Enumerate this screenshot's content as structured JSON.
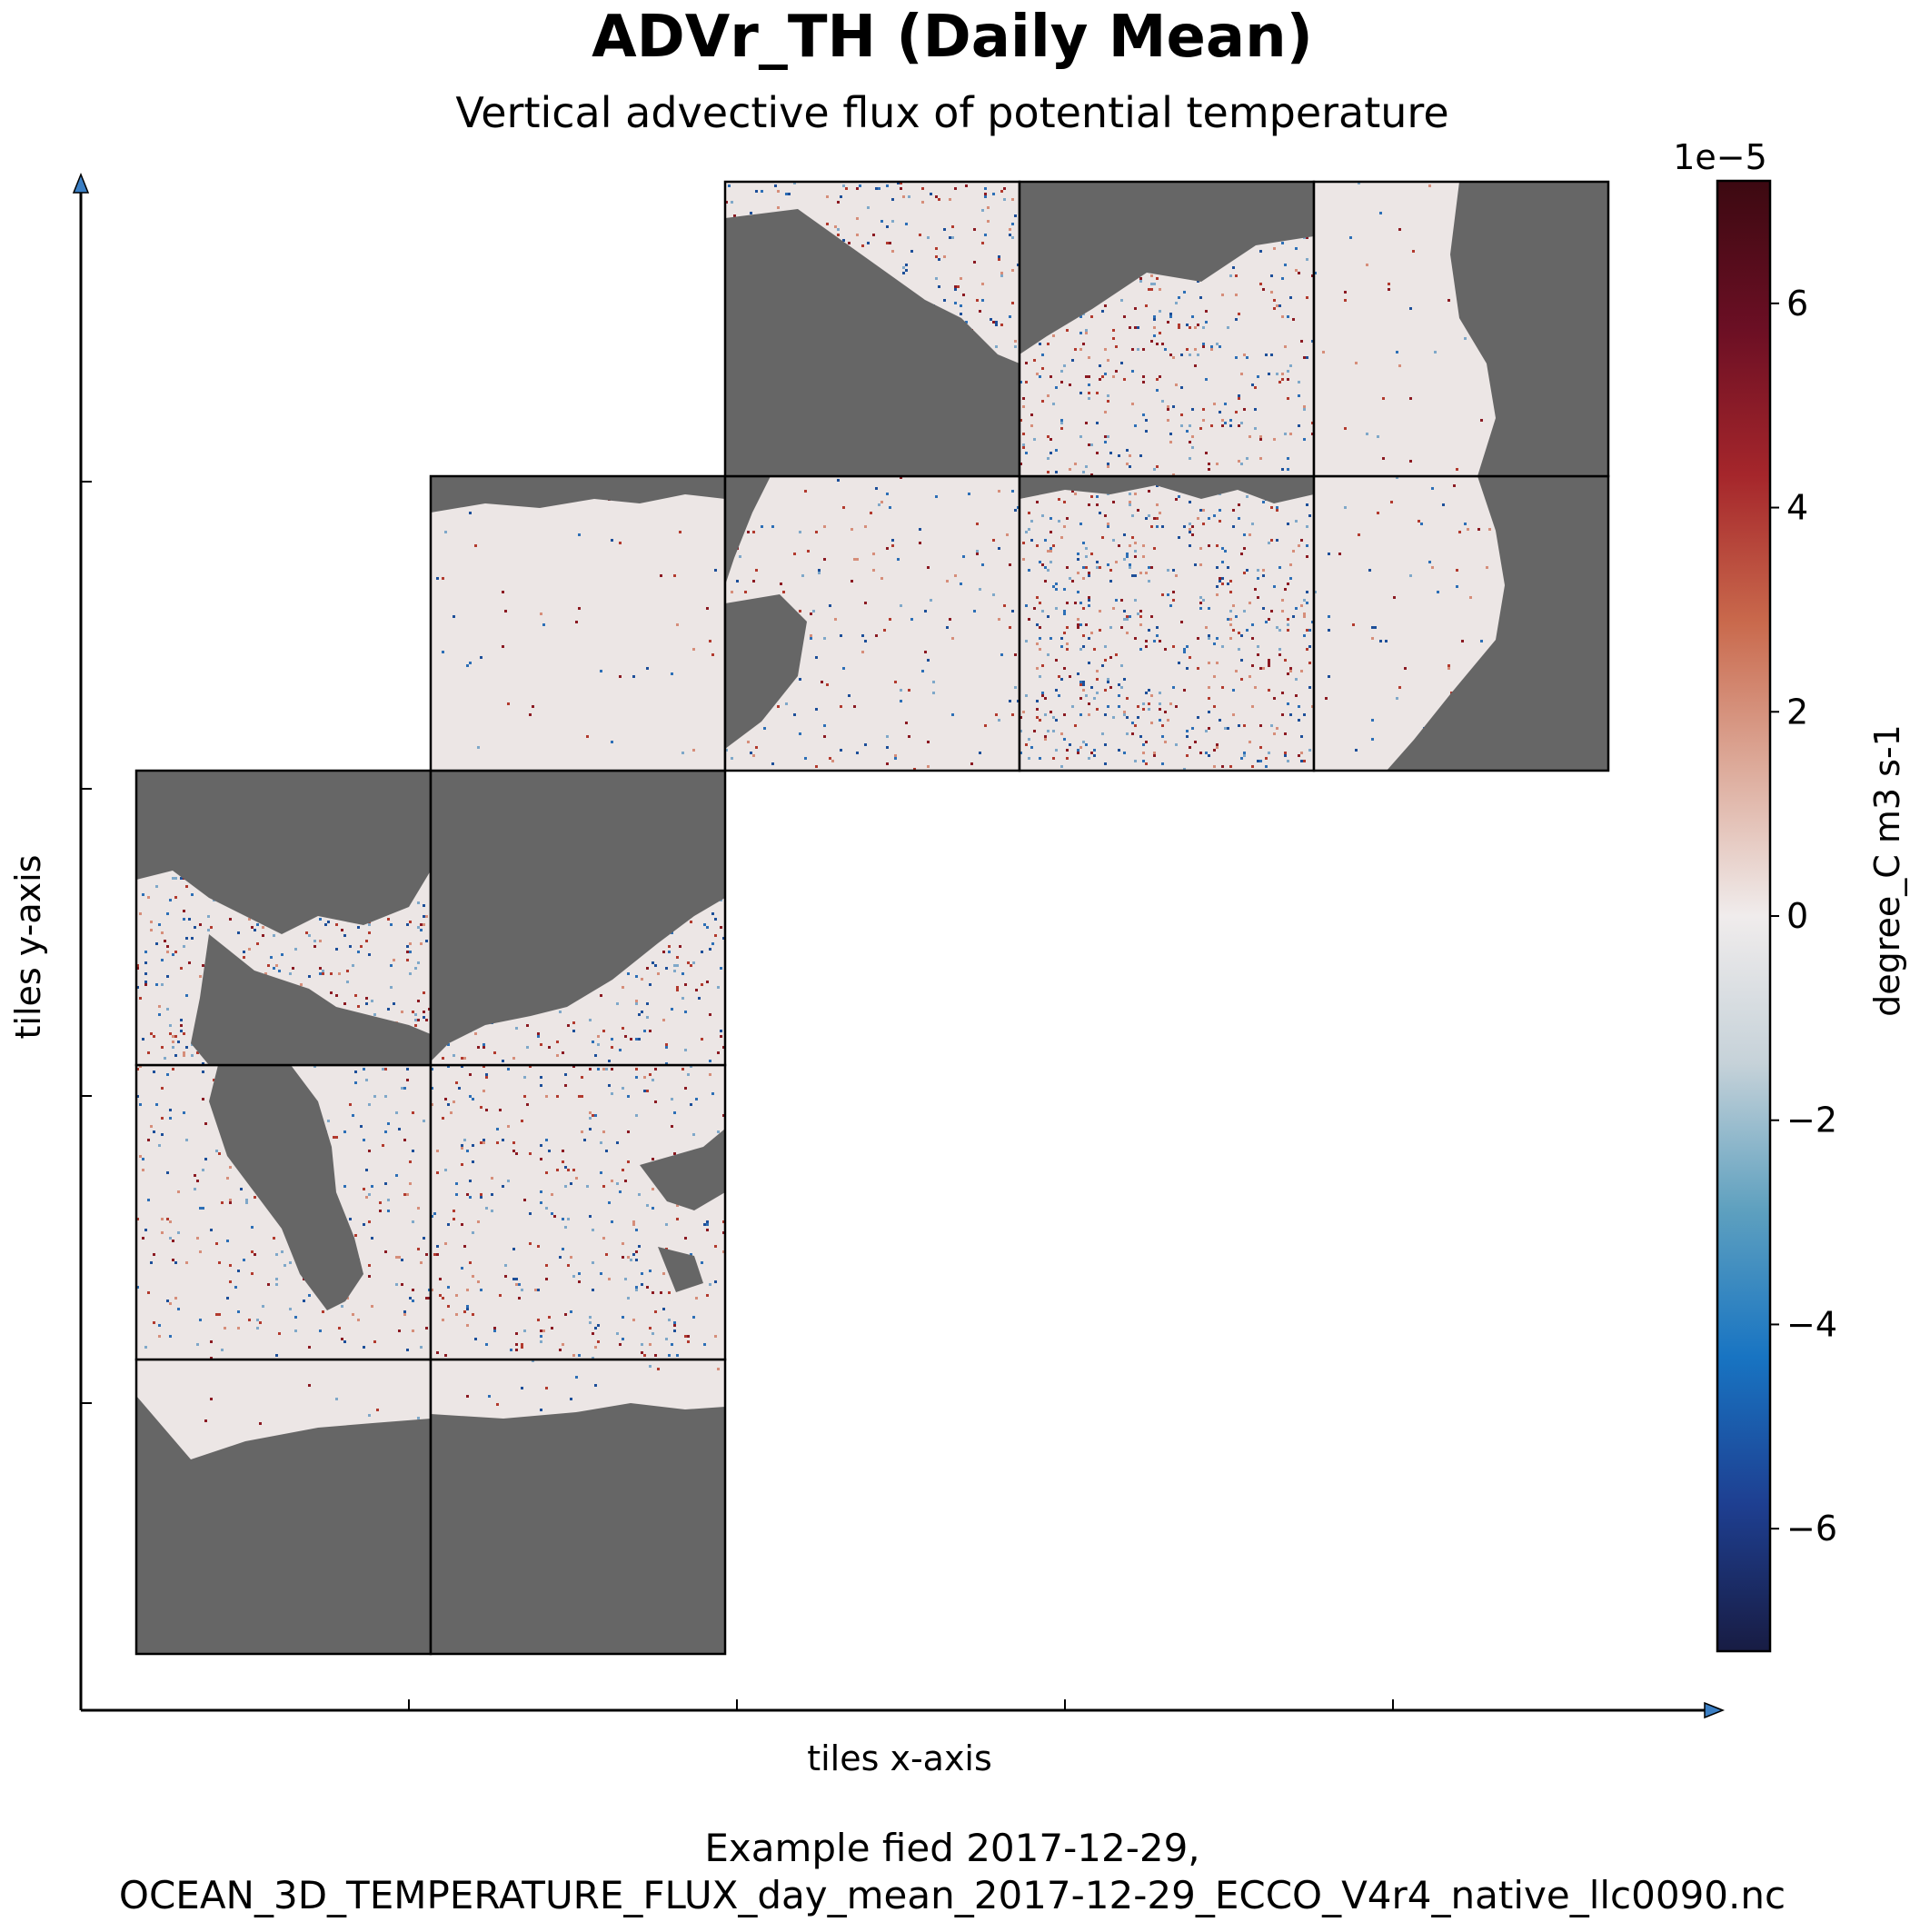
{
  "figure": {
    "title": "ADVr_TH (Daily Mean)",
    "subtitle": "Vertical advective flux of potential temperature",
    "caption_line1": "Example fied 2017-12-29,",
    "caption_line2": "OCEAN_3D_TEMPERATURE_FLUX_day_mean_2017-12-29_ECCO_V4r4_native_llc0090.nc"
  },
  "chart_data": {
    "type": "heatmap",
    "title": "ADVr_TH (Daily Mean)",
    "subtitle": "Vertical advective flux of potential temperature",
    "xlabel": "tiles x-axis",
    "ylabel": "tiles y-axis",
    "grid": false,
    "x_ticks_count": 5,
    "y_ticks_count": 5,
    "tile_layout": {
      "columns": 5,
      "rows": 5,
      "tiles": [
        {
          "col": 0,
          "row": 0,
          "content": "ocean"
        },
        {
          "col": 1,
          "row": 0,
          "content": "ocean"
        },
        {
          "col": 0,
          "row": 1,
          "content": "ocean"
        },
        {
          "col": 1,
          "row": 1,
          "content": "ocean"
        },
        {
          "col": 0,
          "row": 2,
          "content": "ocean"
        },
        {
          "col": 1,
          "row": 2,
          "content": "ocean"
        },
        {
          "col": 1,
          "row": 3,
          "content": "ocean"
        },
        {
          "col": 2,
          "row": 3,
          "content": "ocean"
        },
        {
          "col": 3,
          "row": 3,
          "content": "ocean"
        },
        {
          "col": 4,
          "row": 3,
          "content": "ocean"
        },
        {
          "col": 2,
          "row": 4,
          "content": "ocean"
        },
        {
          "col": 3,
          "row": 4,
          "content": "ocean"
        },
        {
          "col": 4,
          "row": 4,
          "content": "ocean"
        }
      ]
    },
    "colorbar": {
      "label": "degree_C m3 s-1",
      "scale_label": "1e−5",
      "min": -7.2,
      "max": 7.2,
      "ticks": [
        -6,
        -4,
        -2,
        0,
        2,
        4,
        6
      ],
      "tick_labels": [
        "−6",
        "−4",
        "−2",
        "0",
        "2",
        "4",
        "6"
      ],
      "colormap": "balance",
      "stops": [
        "#181c43",
        "#1e3f91",
        "#1874c2",
        "#5ea0bf",
        "#c6d2d9",
        "#f0ecec",
        "#ddab9b",
        "#c9694c",
        "#a5262b",
        "#6b0f24",
        "#3c0911"
      ]
    },
    "land_color": "#666666",
    "ocean_color": "#ece6e5"
  }
}
